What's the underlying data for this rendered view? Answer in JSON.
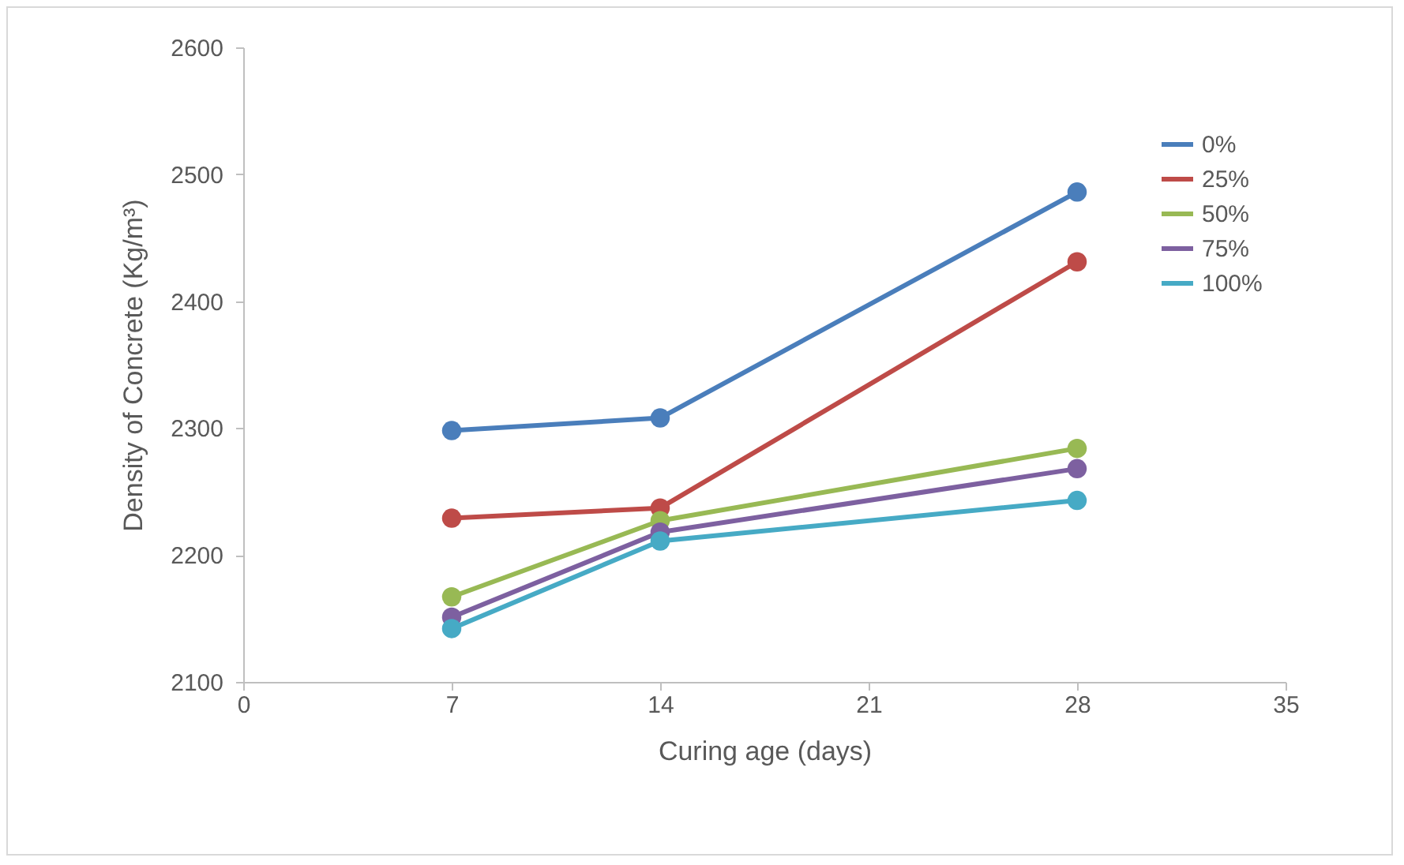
{
  "chart_data": {
    "type": "line",
    "xlabel": "Curing age (days)",
    "ylabel": "Density of Concrete (Kg/m³)",
    "x": [
      7,
      14,
      28
    ],
    "xlim": [
      0,
      35
    ],
    "xticks": [
      0,
      7,
      14,
      21,
      28,
      35
    ],
    "ylim": [
      2100,
      2600
    ],
    "yticks": [
      2100,
      2200,
      2300,
      2400,
      2500,
      2600
    ],
    "grid": false,
    "legend": "top right",
    "marker": "circle",
    "line_style": "solid",
    "series": [
      {
        "name": "0%",
        "color": "#4a7ebb",
        "values": [
          2298,
          2308,
          2486
        ]
      },
      {
        "name": "25%",
        "color": "#be4b48",
        "values": [
          2229,
          2237,
          2431
        ]
      },
      {
        "name": "50%",
        "color": "#98b954",
        "values": [
          2167,
          2227,
          2284
        ]
      },
      {
        "name": "75%",
        "color": "#7d60a0",
        "values": [
          2151,
          2218,
          2268
        ]
      },
      {
        "name": "100%",
        "color": "#46aac5",
        "values": [
          2142,
          2211,
          2243
        ]
      }
    ]
  }
}
